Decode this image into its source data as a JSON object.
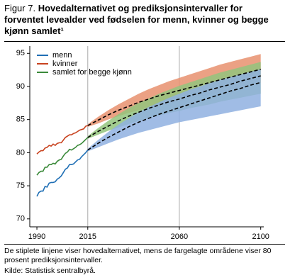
{
  "chart_data": {
    "type": "line",
    "title_prefix": "Figur 7.",
    "title": "Hovedalternativet og prediksjonsintervaller for forventet levealder ved fødselen for menn, kvinner og begge kjønn samlet¹",
    "x": [
      1990,
      1991,
      1992,
      1993,
      1994,
      1995,
      1996,
      1997,
      1998,
      1999,
      2000,
      2001,
      2002,
      2003,
      2004,
      2005,
      2006,
      2007,
      2008,
      2009,
      2010,
      2011,
      2012,
      2013,
      2014,
      2015
    ],
    "series": [
      {
        "name": "menn",
        "color": "#1f6fb5",
        "values": [
          73.4,
          74.0,
          74.2,
          74.2,
          74.9,
          74.8,
          75.4,
          75.5,
          75.5,
          75.6,
          76.0,
          76.2,
          76.5,
          77.0,
          77.5,
          77.7,
          78.2,
          78.2,
          78.3,
          78.6,
          78.9,
          79.0,
          79.4,
          79.7,
          80.0,
          80.4
        ]
      },
      {
        "name": "kvinner",
        "color": "#c8421e",
        "values": [
          79.8,
          80.1,
          80.3,
          80.3,
          80.7,
          80.8,
          81.1,
          81.0,
          81.3,
          81.1,
          81.4,
          81.5,
          81.5,
          81.9,
          82.3,
          82.5,
          82.7,
          82.7,
          82.9,
          83.0,
          83.2,
          83.4,
          83.5,
          83.6,
          84.0,
          84.1
        ]
      },
      {
        "name": "samlet for begge kjønn",
        "color": "#3b8a3a",
        "values": [
          76.6,
          77.0,
          77.2,
          77.2,
          77.8,
          77.8,
          78.2,
          78.2,
          78.4,
          78.3,
          78.7,
          78.9,
          79.0,
          79.5,
          79.9,
          80.1,
          80.5,
          80.4,
          80.6,
          80.8,
          81.1,
          81.2,
          81.4,
          81.7,
          82.0,
          82.3
        ]
      }
    ],
    "projection": {
      "x": [
        2015,
        2020,
        2025,
        2030,
        2035,
        2040,
        2045,
        2050,
        2055,
        2060,
        2065,
        2070,
        2075,
        2080,
        2085,
        2090,
        2095,
        2100
      ],
      "line_color": "#000000",
      "series": [
        {
          "band_color": "#e8916e",
          "values": [
            84.1,
            84.9,
            85.7,
            86.4,
            87.0,
            87.6,
            88.1,
            88.6,
            89.0,
            89.4,
            89.8,
            90.2,
            90.6,
            91.0,
            91.4,
            91.8,
            92.2,
            92.6
          ],
          "upper": [
            84.3,
            85.4,
            86.4,
            87.3,
            88.1,
            88.9,
            89.6,
            90.2,
            90.8,
            91.3,
            91.8,
            92.3,
            92.8,
            93.3,
            93.7,
            94.1,
            94.5,
            94.9
          ],
          "lower": [
            83.9,
            84.4,
            85.0,
            85.5,
            86.0,
            86.4,
            86.8,
            87.2,
            87.5,
            87.8,
            88.2,
            88.5,
            88.8,
            89.2,
            89.5,
            89.8,
            90.2,
            90.5
          ]
        },
        {
          "band_color": "#93c47d",
          "values": [
            82.3,
            83.2,
            84.0,
            84.8,
            85.5,
            86.1,
            86.7,
            87.2,
            87.7,
            88.1,
            88.6,
            89.0,
            89.5,
            89.9,
            90.3,
            90.8,
            91.2,
            91.6
          ],
          "upper": [
            82.5,
            83.7,
            84.8,
            85.8,
            86.7,
            87.5,
            88.2,
            88.9,
            89.5,
            90.1,
            90.6,
            91.1,
            91.6,
            92.1,
            92.5,
            92.9,
            93.3,
            93.7
          ],
          "lower": [
            82.1,
            82.7,
            83.3,
            83.8,
            84.3,
            84.8,
            85.2,
            85.6,
            86.0,
            86.3,
            86.7,
            87.0,
            87.3,
            87.7,
            88.0,
            88.3,
            88.6,
            88.9
          ]
        },
        {
          "band_color": "#8fb0e0",
          "values": [
            80.4,
            81.4,
            82.3,
            83.1,
            83.9,
            84.6,
            85.2,
            85.8,
            86.3,
            86.8,
            87.3,
            87.8,
            88.3,
            88.8,
            89.3,
            89.7,
            90.2,
            90.6
          ],
          "upper": [
            80.6,
            81.9,
            83.1,
            84.2,
            85.2,
            86.1,
            86.9,
            87.6,
            88.3,
            88.9,
            89.5,
            90.0,
            90.5,
            91.0,
            91.4,
            91.8,
            92.2,
            92.6
          ],
          "lower": [
            80.2,
            80.8,
            81.4,
            82.0,
            82.5,
            83.0,
            83.4,
            83.8,
            84.2,
            84.6,
            84.9,
            85.2,
            85.5,
            85.8,
            86.1,
            86.4,
            86.7,
            87.0
          ]
        }
      ]
    },
    "xlim": [
      1986.5,
      2101.5
    ],
    "ylim": [
      68.8,
      96.1
    ],
    "xticks": [
      1990,
      2015,
      2060,
      2100
    ],
    "yticks": [
      70,
      75,
      80,
      85,
      90,
      95
    ],
    "vlines": [
      2015,
      2060
    ],
    "legend": "upper-left",
    "notes": [
      "De stiplete linjene viser hovedalternativet, mens de fargelagte områdene viser 80 prosent prediksjonsintervaller.",
      "Kilde: Statistisk sentralbyrå."
    ]
  }
}
